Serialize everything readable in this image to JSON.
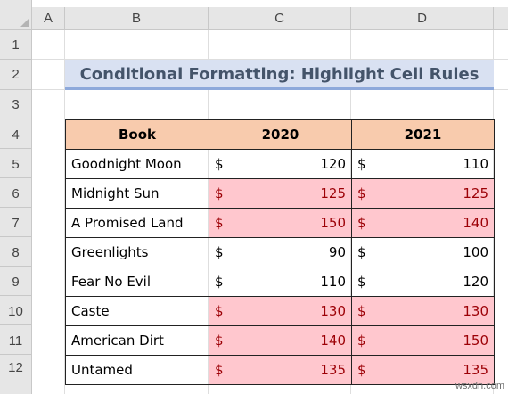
{
  "sheet": {
    "columns": [
      "A",
      "B",
      "C",
      "D"
    ],
    "rows": [
      "1",
      "2",
      "3",
      "4",
      "5",
      "6",
      "7",
      "8",
      "9",
      "10",
      "11",
      "12"
    ]
  },
  "title": "Conditional Formatting: Highlight Cell Rules",
  "table": {
    "headers": [
      "Book",
      "2020",
      "2021"
    ],
    "currency": "$",
    "rows": [
      {
        "book": "Goodnight Moon",
        "v2020": "120",
        "v2021": "110",
        "h2020": false,
        "h2021": false
      },
      {
        "book": "Midnight Sun",
        "v2020": "125",
        "v2021": "125",
        "h2020": true,
        "h2021": true
      },
      {
        "book": "A Promised Land",
        "v2020": "150",
        "v2021": "140",
        "h2020": true,
        "h2021": true
      },
      {
        "book": "Greenlights",
        "v2020": "90",
        "v2021": "100",
        "h2020": false,
        "h2021": false
      },
      {
        "book": "Fear No Evil",
        "v2020": "110",
        "v2021": "120",
        "h2020": false,
        "h2021": false
      },
      {
        "book": "Caste",
        "v2020": "130",
        "v2021": "130",
        "h2020": true,
        "h2021": true
      },
      {
        "book": "American Dirt",
        "v2020": "140",
        "v2021": "150",
        "h2020": true,
        "h2021": true
      },
      {
        "book": "Untamed",
        "v2020": "135",
        "v2021": "135",
        "h2020": true,
        "h2021": true
      }
    ]
  },
  "colors": {
    "highlight_fill": "#ffc7ce",
    "highlight_text": "#9c0006",
    "header_fill": "#f8cbad",
    "title_fill": "#d9e1f2"
  },
  "watermark": "wsxdn.com"
}
